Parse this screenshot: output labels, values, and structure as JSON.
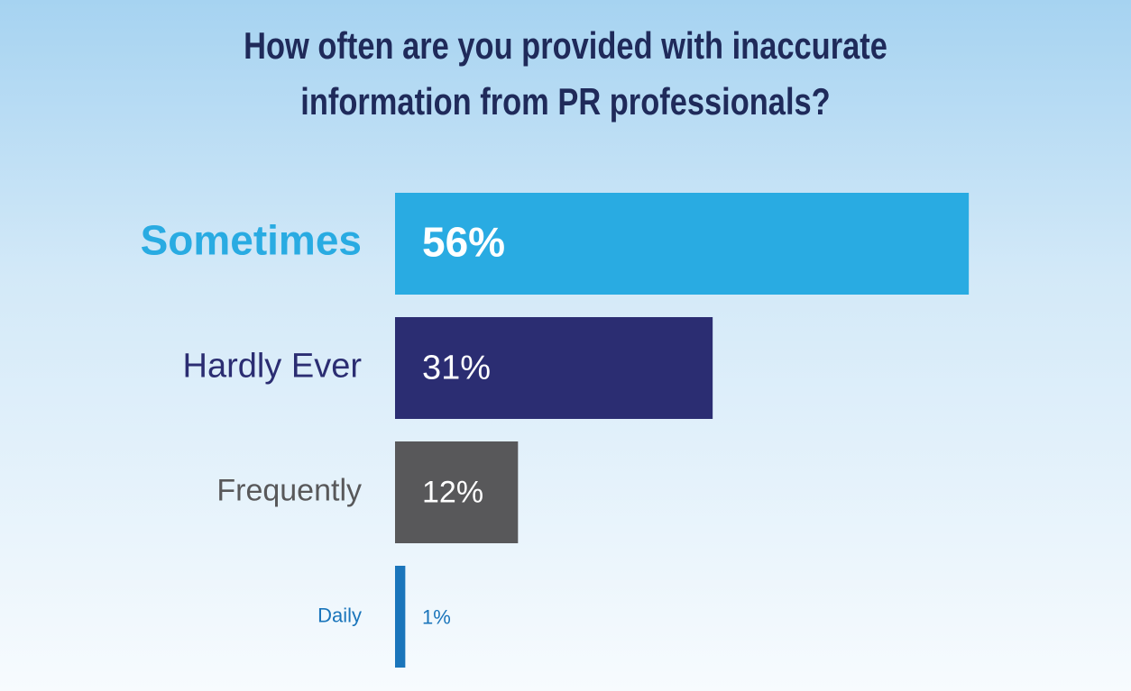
{
  "chart_data": {
    "type": "bar",
    "orientation": "horizontal",
    "title": "How often are you provided with inaccurate information from PR professionals?",
    "categories": [
      "Sometimes",
      "Hardly Ever",
      "Frequently",
      "Daily"
    ],
    "values": [
      56,
      31,
      12,
      1
    ],
    "value_labels": [
      "56%",
      "31%",
      "12%",
      "1%"
    ],
    "colors": [
      "#29abe2",
      "#2b2d72",
      "#58585a",
      "#1a75bb"
    ]
  }
}
